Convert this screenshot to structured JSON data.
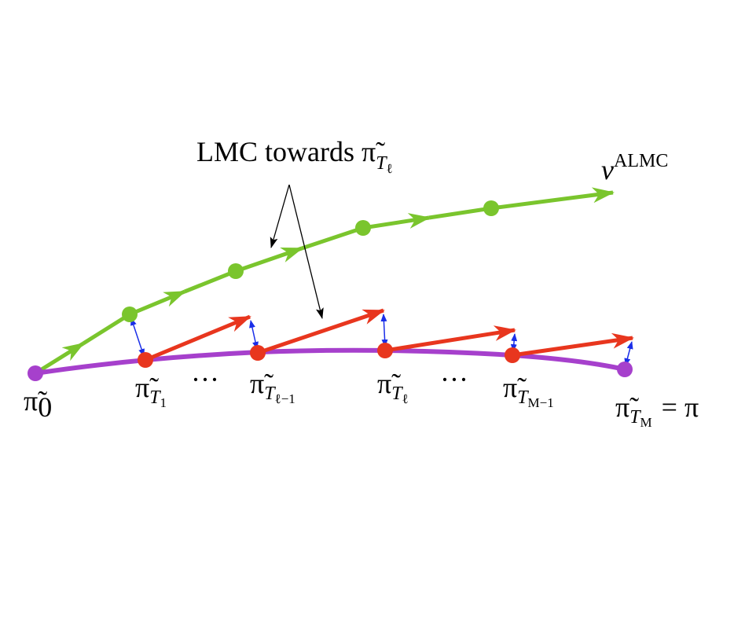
{
  "annotation": {
    "text": "LMC towards",
    "symbol": "π̃",
    "sub": "T",
    "subsub": "ℓ"
  },
  "output_label": {
    "base": "ν",
    "sup": "ALMC"
  },
  "labels": [
    {
      "base": "π̃",
      "sub": "0"
    },
    {
      "base": "π̃",
      "sub": "T",
      "subsub": "1"
    },
    {
      "base": "π̃",
      "sub": "T",
      "subsub": "ℓ−1"
    },
    {
      "base": "π̃",
      "sub": "T",
      "subsub": "ℓ"
    },
    {
      "base": "π̃",
      "sub": "T",
      "subsub": "M−1"
    },
    {
      "base": "π̃",
      "sub": "T",
      "subsub": "M",
      "suffix": "= π"
    }
  ],
  "ellipses": [
    "···",
    "···"
  ]
}
